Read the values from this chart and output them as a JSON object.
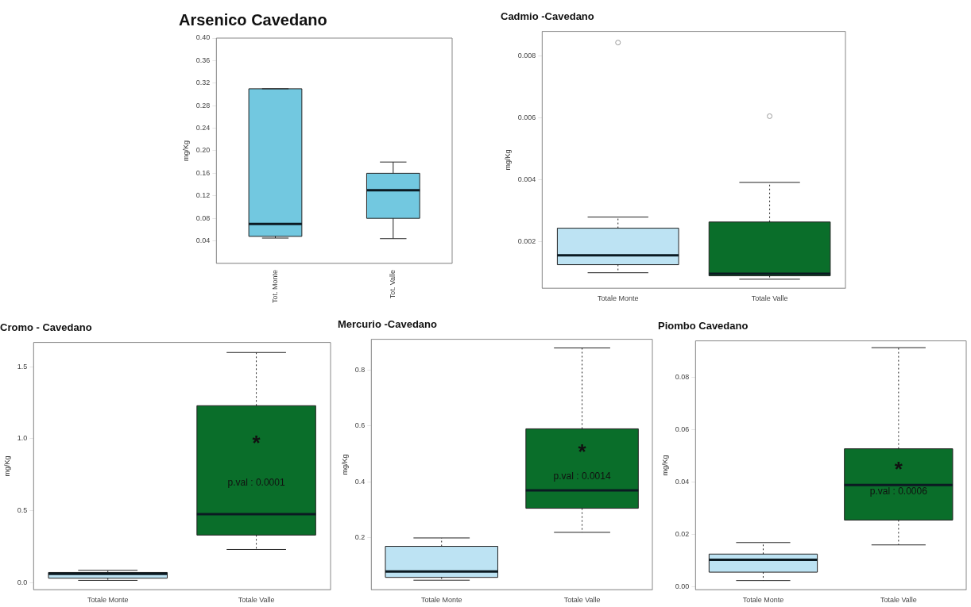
{
  "chart_data": [
    {
      "type": "box",
      "title": "Arsenico Cavedano",
      "ylabel": "mg/Kg",
      "categories": [
        "Tot. Monte",
        "Tot. Valle"
      ],
      "colors": [
        "#72c8e0",
        "#72c8e0"
      ],
      "line_style": "solid",
      "legend": false,
      "grid": false,
      "boxes": [
        {
          "low": 0.045,
          "q1": 0.048,
          "median": 0.07,
          "q3": 0.31,
          "high": 0.31
        },
        {
          "low": 0.044,
          "q1": 0.08,
          "median": 0.13,
          "q3": 0.16,
          "high": 0.18
        }
      ],
      "ylim": [
        0,
        0.4
      ],
      "yticks": [
        0.04,
        0.08,
        0.12,
        0.16,
        {
          "value": 0.2,
          "label": "0.20"
        },
        0.24,
        0.28,
        0.32,
        0.36,
        {
          "value": 0.4,
          "label": "0.40"
        }
      ]
    },
    {
      "type": "box",
      "title": "Cadmio -Cavedano",
      "ylabel": "mg/Kg",
      "categories": [
        "Totale Monte",
        "Totale Valle"
      ],
      "colors": [
        "#bde3f3",
        "#0a6e2a"
      ],
      "line_style": "dotted",
      "legend": false,
      "grid": false,
      "boxes": [
        {
          "low": 0.001,
          "q1": 0.00126,
          "median": 0.00156,
          "q3": 0.00244,
          "high": 0.0028,
          "outliers": [
            0.00844
          ]
        },
        {
          "low": 0.00079,
          "q1": 0.0009,
          "median": 0.00097,
          "q3": 0.00264,
          "high": 0.00392,
          "outliers": [
            0.00606
          ]
        }
      ],
      "ylim": [
        0.0005,
        0.0088
      ],
      "yticks": [
        0.002,
        0.004,
        0.006,
        0.008
      ]
    },
    {
      "type": "box",
      "title": "Cromo - Cavedano",
      "ylabel": "mg/Kg",
      "categories": [
        "Totale Monte",
        "Totale Valle"
      ],
      "colors": [
        "#bde3f3",
        "#0a6e2a"
      ],
      "line_style": "dotted",
      "legend": false,
      "grid": false,
      "boxes": [
        {
          "low": 0.015,
          "q1": 0.03,
          "median": 0.06,
          "q3": 0.07,
          "high": 0.085
        },
        {
          "low": 0.23,
          "q1": 0.33,
          "median": 0.475,
          "q3": 1.23,
          "high": 1.6
        }
      ],
      "ylim": [
        -0.05,
        1.67
      ],
      "yticks": [
        {
          "value": 0,
          "label": "0.0"
        },
        0.5,
        {
          "value": 1,
          "label": "1.0"
        },
        1.5
      ],
      "annotations": [
        "*",
        "p.val : 0.0001"
      ]
    },
    {
      "type": "box",
      "title": "Mercurio -Cavedano",
      "ylabel": "mg/Kg",
      "categories": [
        "Totale Monte",
        "Totale Valle"
      ],
      "colors": [
        "#bde3f3",
        "#0a6e2a"
      ],
      "line_style": "dotted",
      "legend": false,
      "grid": false,
      "boxes": [
        {
          "low": 0.049,
          "q1": 0.059,
          "median": 0.08,
          "q3": 0.17,
          "high": 0.2
        },
        {
          "low": 0.22,
          "q1": 0.306,
          "median": 0.37,
          "q3": 0.59,
          "high": 0.879
        }
      ],
      "ylim": [
        0.015,
        0.91
      ],
      "yticks": [
        0.2,
        0.4,
        0.6,
        0.8
      ],
      "annotations": [
        "*",
        "p.val : 0.0014"
      ]
    },
    {
      "type": "box",
      "title": "Piombo Cavedano",
      "ylabel": "mg/Kg",
      "categories": [
        "Totale Monte",
        "Totale Valle"
      ],
      "colors": [
        "#bde3f3",
        "#0a6e2a"
      ],
      "line_style": "dotted",
      "legend": false,
      "grid": false,
      "boxes": [
        {
          "low": 0.0025,
          "q1": 0.0057,
          "median": 0.0104,
          "q3": 0.0126,
          "high": 0.017
        },
        {
          "low": 0.0161,
          "q1": 0.0256,
          "median": 0.039,
          "q3": 0.0528,
          "high": 0.0914
        }
      ],
      "ylim": [
        -0.001,
        0.094
      ],
      "yticks": [
        {
          "value": 0,
          "label": "0.00"
        },
        0.02,
        0.04,
        0.06,
        0.08
      ],
      "annotations": [
        "*",
        "p.val : 0.0006"
      ]
    }
  ]
}
